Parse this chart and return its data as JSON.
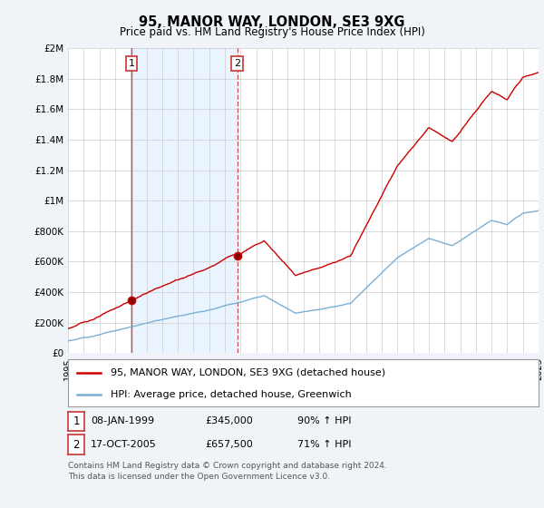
{
  "title": "95, MANOR WAY, LONDON, SE3 9XG",
  "subtitle": "Price paid vs. HM Land Registry's House Price Index (HPI)",
  "legend_line1": "95, MANOR WAY, LONDON, SE3 9XG (detached house)",
  "legend_line2": "HPI: Average price, detached house, Greenwich",
  "annotation1_date": "08-JAN-1999",
  "annotation1_price": "£345,000",
  "annotation1_hpi": "90% ↑ HPI",
  "annotation2_date": "17-OCT-2005",
  "annotation2_price": "£657,500",
  "annotation2_hpi": "71% ↑ HPI",
  "footer": "Contains HM Land Registry data © Crown copyright and database right 2024.\nThis data is licensed under the Open Government Licence v3.0.",
  "red_color": "#cc0000",
  "blue_color": "#7ab0d4",
  "vline1_color": "#cc4444",
  "vline2_color": "#cc4444",
  "shade_color": "#ddeeff",
  "background_color": "#f0f4f8",
  "plot_bg_color": "#ffffff",
  "ylim": [
    0,
    2000000
  ],
  "yticks": [
    0,
    200000,
    400000,
    600000,
    800000,
    1000000,
    1200000,
    1400000,
    1600000,
    1800000,
    2000000
  ],
  "sale1_year": 1999.05,
  "sale2_year": 2005.8,
  "sale1_price": 345000,
  "sale2_price": 657500,
  "xstart": 1995,
  "xend": 2025
}
